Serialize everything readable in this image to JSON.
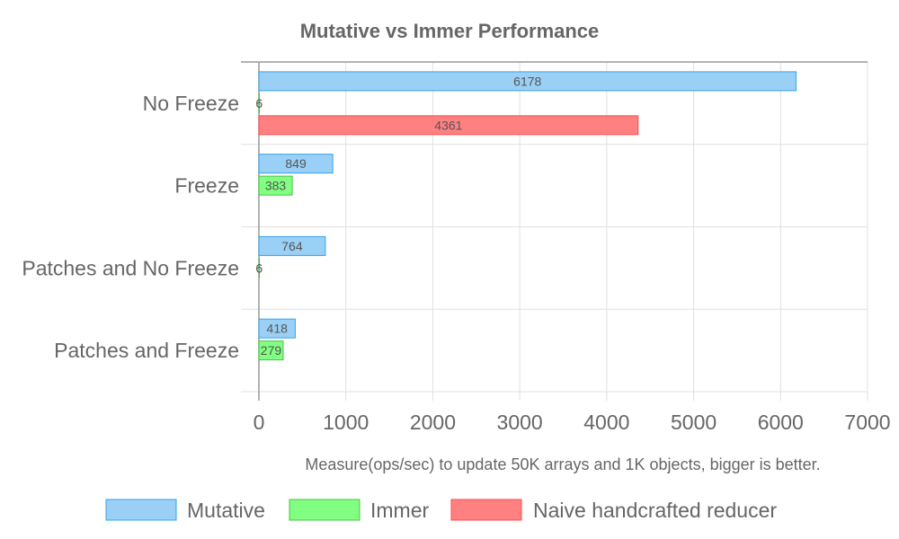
{
  "chart_data": {
    "type": "bar",
    "orientation": "horizontal",
    "title": "Mutative vs Immer Performance",
    "xlabel": "Measure(ops/sec) to update 50K arrays and 1K objects, bigger is better.",
    "ylabel": "",
    "xlim": [
      0,
      7000
    ],
    "xticks": [
      0,
      1000,
      2000,
      3000,
      4000,
      5000,
      6000,
      7000
    ],
    "grid": true,
    "legend_position": "bottom",
    "categories": [
      "No Freeze",
      "Freeze",
      "Patches and No Freeze",
      "Patches and Freeze"
    ],
    "series": [
      {
        "name": "Mutative",
        "values": [
          6178,
          849,
          764,
          418
        ],
        "color": "#9ad0f5",
        "border": "#36a2eb"
      },
      {
        "name": "Immer",
        "values": [
          6,
          383,
          6,
          279
        ],
        "color": "#80ff80",
        "border": "#4bc04b"
      },
      {
        "name": "Naive handcrafted reducer",
        "values": [
          4361,
          null,
          null,
          null
        ],
        "color": "#ff8080",
        "border": "#ff4d4d"
      }
    ]
  }
}
